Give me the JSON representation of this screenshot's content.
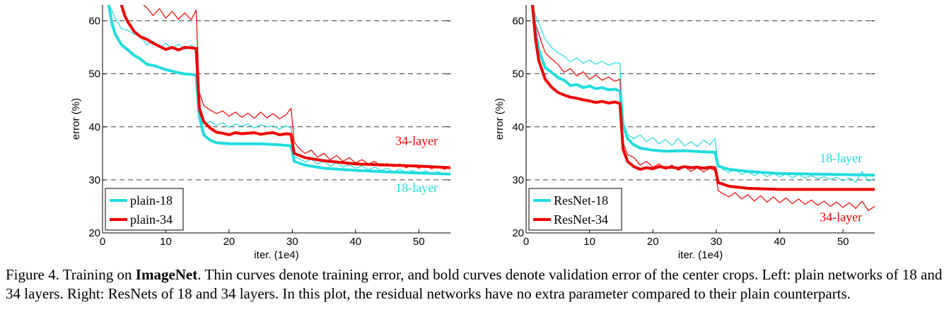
{
  "chart_data": [
    {
      "type": "line",
      "xlabel": "iter. (1e4)",
      "ylabel": "error (%)",
      "xlim": [
        0,
        55
      ],
      "ylim": [
        20,
        63
      ],
      "xticks": [
        0,
        10,
        20,
        30,
        40,
        50
      ],
      "yticks": [
        20,
        30,
        40,
        50,
        60
      ],
      "grid": "horizontal dashed",
      "legend_position": "bottom-left",
      "legend": [
        "plain-18",
        "plain-34"
      ],
      "annotations": [
        {
          "text": "34-layer",
          "color": "#ee0000",
          "x": 53,
          "y": 36.6
        },
        {
          "text": "18-layer",
          "color": "#22dddd",
          "x": 53,
          "y": 27.7
        }
      ],
      "series": [
        {
          "name": "plain-18",
          "style": "bold",
          "color": "#22dddd",
          "x": [
            1,
            1.5,
            2,
            3,
            4,
            5,
            6,
            7,
            8,
            9,
            10,
            11,
            12,
            13,
            14,
            14.8,
            15.3,
            16,
            17,
            18,
            20,
            22,
            25,
            28,
            29.8,
            30.3,
            32,
            35,
            40,
            45,
            50,
            55
          ],
          "y": [
            63,
            59.5,
            57.5,
            55.5,
            54.5,
            53.5,
            52.8,
            51.8,
            51.6,
            51.2,
            50.8,
            50.5,
            50.2,
            50.0,
            49.9,
            49.8,
            42,
            38.5,
            37.5,
            37.0,
            36.8,
            36.8,
            36.8,
            36.6,
            36.4,
            33.5,
            32.8,
            32.2,
            31.8,
            31.5,
            31.3,
            31.1
          ]
        },
        {
          "name": "plain-18 train",
          "style": "thin",
          "color": "#22dddd",
          "x": [
            1,
            1.5,
            2,
            3,
            4,
            5,
            6,
            7,
            8,
            9,
            10,
            11,
            12,
            13,
            14,
            14.8,
            15.3,
            16,
            17,
            18,
            19,
            20,
            21,
            22,
            23,
            24,
            25,
            26,
            27,
            28,
            29,
            29.8,
            30.3,
            31,
            32,
            33,
            34,
            35,
            36,
            37,
            38,
            39,
            40,
            41,
            42,
            43,
            44,
            45,
            46,
            47,
            48,
            49,
            50,
            51,
            52,
            53,
            54,
            55
          ],
          "y": [
            63,
            62,
            60.5,
            58.5,
            58.2,
            57.5,
            57.0,
            55.5,
            56.2,
            55.0,
            55.8,
            54.8,
            55.6,
            54.6,
            55.4,
            54.8,
            41.5,
            40.6,
            41.0,
            40.3,
            40.8,
            39.9,
            40.6,
            40.1,
            40.5,
            39.8,
            40.4,
            40.0,
            40.2,
            39.6,
            40.2,
            39.8,
            34.5,
            34.0,
            33.4,
            33.9,
            33.0,
            33.5,
            32.6,
            33.2,
            32.4,
            32.9,
            32.2,
            32.6,
            31.9,
            32.4,
            31.8,
            32.2,
            31.5,
            32.0,
            31.4,
            31.8,
            31.2,
            31.7,
            31.0,
            31.6,
            31.0,
            31.3
          ]
        },
        {
          "name": "plain-34",
          "style": "bold",
          "color": "#ee0000",
          "x": [
            3,
            3.5,
            4,
            5,
            6,
            7,
            8,
            9,
            10,
            11,
            12,
            13,
            14,
            14.8,
            15.3,
            16,
            17,
            18,
            19,
            20,
            21,
            22,
            23,
            24,
            25,
            26,
            27,
            28,
            29,
            29.8,
            30.3,
            32,
            35,
            40,
            45,
            50,
            55
          ],
          "y": [
            63,
            61,
            59.8,
            58.0,
            57.0,
            56.5,
            55.8,
            55.2,
            54.6,
            55.0,
            54.5,
            55.0,
            54.9,
            54.8,
            43.5,
            41.0,
            39.8,
            39.0,
            38.8,
            38.5,
            38.9,
            38.7,
            38.8,
            38.9,
            38.6,
            38.8,
            38.9,
            38.5,
            38.7,
            38.6,
            35.0,
            34.2,
            33.6,
            33.0,
            32.8,
            32.6,
            32.3
          ]
        },
        {
          "name": "plain-34 train",
          "style": "thin",
          "color": "#ee0000",
          "x": [
            6.5,
            7,
            8,
            9,
            10,
            11,
            12,
            13,
            14,
            14.8,
            15.3,
            16,
            17,
            18,
            19,
            20,
            21,
            22,
            23,
            24,
            25,
            26,
            27,
            28,
            29,
            29.8,
            30.3,
            31,
            32,
            33,
            34,
            35,
            36,
            37,
            38,
            39,
            40,
            41,
            42,
            43,
            44,
            45,
            46,
            47,
            48,
            49,
            50,
            51,
            52,
            53,
            54,
            55
          ],
          "y": [
            63,
            62.5,
            61.0,
            62.3,
            60.5,
            61.8,
            60.3,
            61.5,
            60.2,
            62.0,
            46.5,
            44.0,
            43.2,
            42.5,
            43.0,
            42.0,
            42.8,
            41.8,
            42.6,
            41.6,
            42.8,
            41.7,
            42.5,
            41.5,
            42.3,
            43.5,
            37.2,
            36.0,
            35.0,
            35.6,
            34.3,
            35.0,
            33.8,
            34.6,
            33.5,
            34.2,
            33.2,
            33.8,
            33.0,
            33.5,
            32.6,
            33.1,
            32.5,
            33.0,
            32.3,
            32.8,
            32.2,
            32.7,
            32.1,
            32.6,
            32.0,
            32.4
          ]
        }
      ]
    },
    {
      "type": "line",
      "xlabel": "iter. (1e4)",
      "ylabel": "error (%)",
      "xlim": [
        0,
        55
      ],
      "ylim": [
        20,
        63
      ],
      "xticks": [
        0,
        10,
        20,
        30,
        40,
        50
      ],
      "yticks": [
        20,
        30,
        40,
        50,
        60
      ],
      "grid": "horizontal dashed",
      "legend_position": "bottom-left",
      "legend": [
        "ResNet-18",
        "ResNet-34"
      ],
      "annotations": [
        {
          "text": "18-layer",
          "color": "#22dddd",
          "x": 53,
          "y": 33.3
        },
        {
          "text": "34-layer",
          "color": "#ee0000",
          "x": 53,
          "y": 22.2
        }
      ],
      "series": [
        {
          "name": "ResNet-18",
          "style": "bold",
          "color": "#22dddd",
          "x": [
            1,
            1.5,
            2,
            3,
            4,
            5,
            6,
            7,
            8,
            9,
            10,
            11,
            12,
            13,
            14,
            14.8,
            15.3,
            16,
            17,
            18,
            20,
            22,
            25,
            28,
            29.8,
            30.3,
            32,
            35,
            40,
            45,
            50,
            55
          ],
          "y": [
            63,
            58,
            54.5,
            51.2,
            50.3,
            49.3,
            48.8,
            47.8,
            48.0,
            47.4,
            47.7,
            47.2,
            47.4,
            47.0,
            47.1,
            46.8,
            40.5,
            37.8,
            36.6,
            36.0,
            35.6,
            35.4,
            35.5,
            35.3,
            35.2,
            32.6,
            32.0,
            31.6,
            31.2,
            31.1,
            31.0,
            30.9
          ]
        },
        {
          "name": "ResNet-18 train",
          "style": "thin",
          "color": "#22dddd",
          "x": [
            1,
            1.5,
            2,
            3,
            4,
            5,
            6,
            7,
            8,
            9,
            10,
            11,
            12,
            13,
            14,
            14.8,
            15.3,
            16,
            17,
            18,
            19,
            20,
            21,
            22,
            23,
            24,
            25,
            26,
            27,
            28,
            29,
            29.8,
            30.3,
            31,
            32,
            33,
            34,
            35,
            36,
            37,
            38,
            39,
            40,
            41,
            42,
            43,
            44,
            45,
            46,
            47,
            48,
            49,
            50,
            51,
            52,
            53,
            54,
            55
          ],
          "y": [
            63,
            61,
            59.5,
            56.5,
            55.0,
            54.0,
            53.3,
            52.3,
            53.0,
            52.0,
            52.6,
            51.8,
            52.4,
            51.6,
            52.1,
            52.0,
            41.0,
            38.5,
            37.8,
            38.5,
            37.2,
            38.0,
            36.8,
            37.6,
            36.5,
            37.8,
            36.4,
            37.2,
            36.3,
            37.5,
            36.6,
            37.8,
            33.0,
            32.0,
            31.4,
            32.0,
            31.0,
            31.6,
            30.8,
            31.4,
            30.6,
            31.2,
            30.6,
            31.1,
            30.4,
            31.0,
            30.3,
            30.8,
            30.2,
            30.6,
            30.1,
            30.5,
            29.8,
            30.4,
            29.6,
            31.6,
            29.8,
            30.2
          ]
        },
        {
          "name": "ResNet-34",
          "style": "bold",
          "color": "#ee0000",
          "x": [
            1,
            1.5,
            2,
            3,
            4,
            5,
            6,
            7,
            8,
            9,
            10,
            11,
            12,
            13,
            14,
            14.8,
            15.3,
            16,
            17,
            18,
            19,
            20,
            21,
            22,
            23,
            24,
            25,
            26,
            27,
            28,
            29,
            29.8,
            30.3,
            32,
            35,
            40,
            45,
            50,
            55
          ],
          "y": [
            63,
            56.5,
            52.5,
            49.0,
            47.5,
            46.5,
            46.0,
            45.6,
            45.4,
            45.1,
            44.9,
            44.6,
            44.8,
            44.5,
            44.7,
            44.4,
            35.8,
            33.5,
            32.5,
            32.0,
            32.3,
            32.1,
            32.5,
            32.3,
            32.4,
            32.2,
            32.5,
            32.3,
            32.4,
            32.2,
            32.4,
            32.3,
            29.5,
            28.8,
            28.4,
            28.2,
            28.2,
            28.2,
            28.2
          ]
        },
        {
          "name": "ResNet-34 train",
          "style": "thin",
          "color": "#ee0000",
          "x": [
            1,
            1.5,
            2,
            3,
            4,
            5,
            6,
            7,
            8,
            9,
            10,
            11,
            12,
            13,
            14,
            14.8,
            15.3,
            16,
            17,
            18,
            19,
            20,
            21,
            22,
            23,
            24,
            25,
            26,
            27,
            28,
            29,
            29.8,
            30.3,
            31,
            32,
            33,
            34,
            35,
            36,
            37,
            38,
            39,
            40,
            41,
            42,
            43,
            44,
            45,
            46,
            47,
            48,
            49,
            50,
            51,
            52,
            53,
            54,
            55
          ],
          "y": [
            63,
            59.5,
            57.5,
            54.0,
            52.8,
            51.8,
            50.3,
            51.0,
            49.6,
            50.4,
            49.0,
            49.8,
            48.8,
            49.4,
            48.6,
            49.0,
            37.0,
            34.8,
            34.2,
            32.8,
            33.5,
            32.4,
            33.0,
            32.0,
            32.8,
            31.8,
            32.5,
            31.6,
            32.3,
            31.5,
            32.2,
            31.8,
            28.0,
            27.4,
            26.8,
            27.6,
            26.4,
            27.2,
            26.0,
            27.0,
            25.8,
            26.8,
            25.7,
            26.6,
            25.5,
            26.4,
            25.4,
            26.2,
            25.2,
            26.0,
            25.0,
            25.8,
            24.8,
            25.7,
            24.6,
            26.0,
            24.2,
            25.0
          ]
        }
      ]
    }
  ],
  "caption": {
    "prefix": "Figure 4. Training on ",
    "bold": "ImageNet",
    "suffix": ". Thin curves denote training error, and bold curves denote validation error of the center crops. Left: plain networks of 18 and 34 layers. Right: ResNets of 18 and 34 layers. In this plot, the residual networks have no extra parameter compared to their plain counterparts."
  }
}
